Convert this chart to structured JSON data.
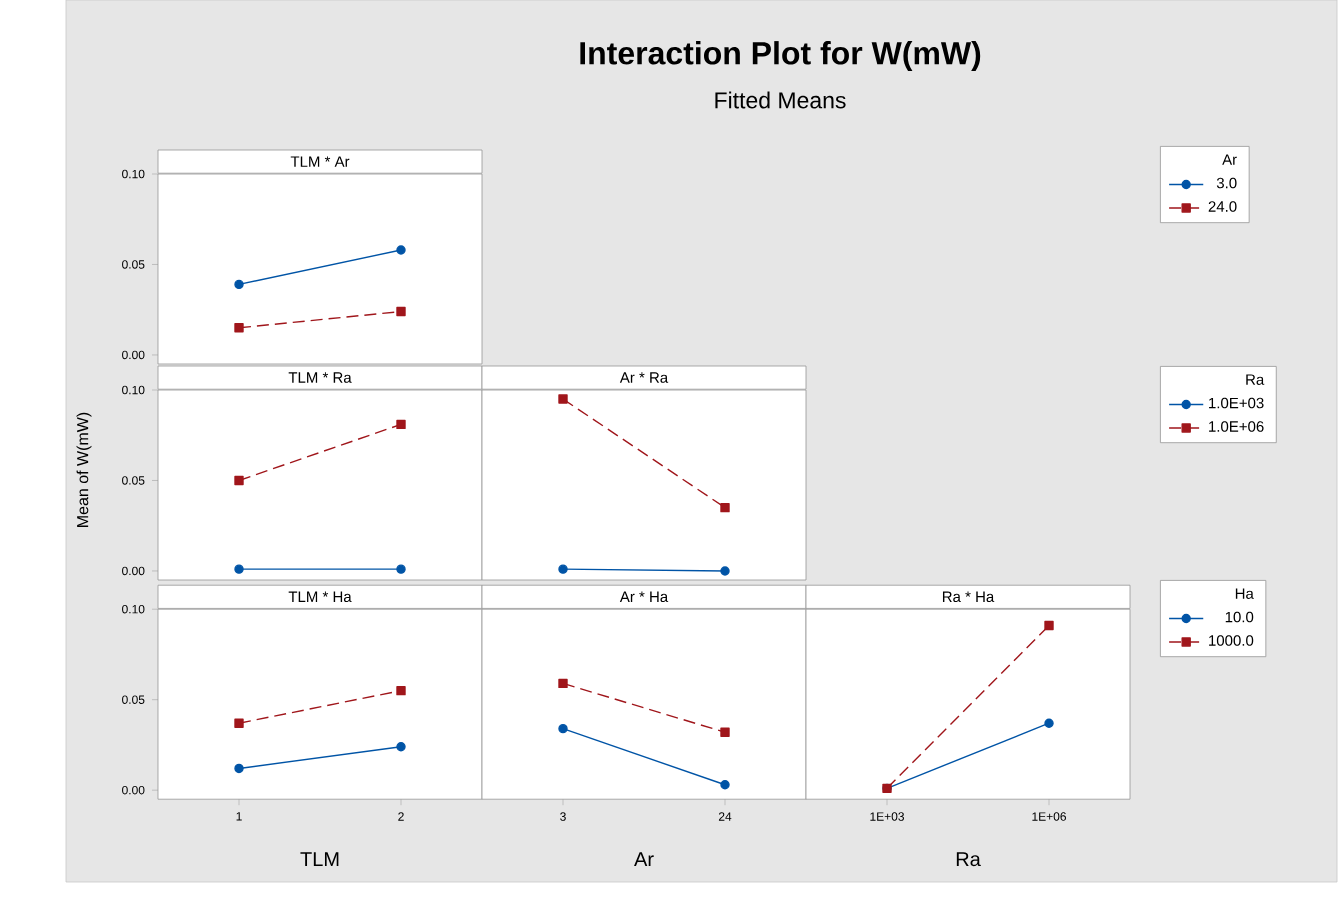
{
  "chart_data": [
    {
      "type": "line",
      "title": "TLM * Ar",
      "annotations": [
        "Interaction Plot for W(mW)",
        "Fitted Means"
      ],
      "categories": [
        "1",
        "2"
      ],
      "ylim": [
        -0.005,
        0.1
      ],
      "yticks": [
        {
          "value": 0,
          "label": "0.00"
        },
        {
          "value": 0.05,
          "label": "0.05"
        },
        {
          "value": 0.1,
          "label": "0.10"
        }
      ],
      "tick_labels": "y",
      "legend": "right",
      "legend_title": "Ar",
      "series": [
        {
          "name": "3.0",
          "color": "#0054a6",
          "marker": "circle",
          "line_style": "solid",
          "values": [
            0.039,
            0.058
          ]
        },
        {
          "name": "24.0",
          "color": "#a0161b",
          "marker": "square",
          "line_style": "dashed",
          "values": [
            0.015,
            0.024
          ]
        }
      ]
    },
    {
      "type": "line",
      "title": "TLM * Ra",
      "ylabel": "Mean of W(mW)",
      "categories": [
        "1",
        "2"
      ],
      "ylim": [
        -0.005,
        0.1
      ],
      "yticks": [
        {
          "value": 0,
          "label": "0.00"
        },
        {
          "value": 0.05,
          "label": "0.05"
        },
        {
          "value": 0.1,
          "label": "0.10"
        }
      ],
      "tick_labels": "y",
      "series": [
        {
          "color": "#0054a6",
          "marker": "circle",
          "line_style": "solid",
          "values": [
            0.001,
            0.001
          ]
        },
        {
          "color": "#a0161b",
          "marker": "square",
          "line_style": "dashed",
          "values": [
            0.05,
            0.081
          ]
        }
      ]
    },
    {
      "type": "line",
      "title": "Ar * Ra",
      "categories": [
        "3",
        "24"
      ],
      "ylim": [
        -0.005,
        0.1
      ],
      "tick_labels": false,
      "legend": "right",
      "legend_title": "Ra",
      "series": [
        {
          "name": "1.0E+03",
          "color": "#0054a6",
          "marker": "circle",
          "line_style": "solid",
          "values": [
            0.001,
            0.0
          ]
        },
        {
          "name": "1.0E+06",
          "color": "#a0161b",
          "marker": "square",
          "line_style": "dashed",
          "values": [
            0.095,
            0.035
          ]
        }
      ]
    },
    {
      "type": "line",
      "title": "TLM * Ha",
      "xlabel": "TLM",
      "categories": [
        "1",
        "2"
      ],
      "ylim": [
        -0.005,
        0.1
      ],
      "yticks": [
        {
          "value": 0,
          "label": "0.00"
        },
        {
          "value": 0.05,
          "label": "0.05"
        },
        {
          "value": 0.1,
          "label": "0.10"
        }
      ],
      "series": [
        {
          "color": "#0054a6",
          "marker": "circle",
          "line_style": "solid",
          "values": [
            0.012,
            0.024
          ]
        },
        {
          "color": "#a0161b",
          "marker": "square",
          "line_style": "dashed",
          "values": [
            0.037,
            0.055
          ]
        }
      ]
    },
    {
      "type": "line",
      "title": "Ar * Ha",
      "xlabel": "Ar",
      "categories": [
        "3",
        "24"
      ],
      "ylim": [
        -0.005,
        0.1
      ],
      "tick_labels": "x",
      "series": [
        {
          "color": "#0054a6",
          "marker": "circle",
          "line_style": "solid",
          "values": [
            0.034,
            0.003
          ]
        },
        {
          "color": "#a0161b",
          "marker": "square",
          "line_style": "dashed",
          "values": [
            0.059,
            0.032
          ]
        }
      ]
    },
    {
      "type": "line",
      "title": "Ra * Ha",
      "xlabel": "Ra",
      "categories": [
        "1E+03",
        "1E+06"
      ],
      "ylim": [
        -0.005,
        0.1
      ],
      "tick_labels": "x",
      "legend": "right",
      "legend_title": "Ha",
      "series": [
        {
          "name": "10.0",
          "color": "#0054a6",
          "marker": "circle",
          "line_style": "solid",
          "values": [
            0.001,
            0.037
          ]
        },
        {
          "name": "1000.0",
          "color": "#a0161b",
          "marker": "square",
          "line_style": "dashed",
          "values": [
            0.001,
            0.091
          ]
        }
      ]
    }
  ]
}
